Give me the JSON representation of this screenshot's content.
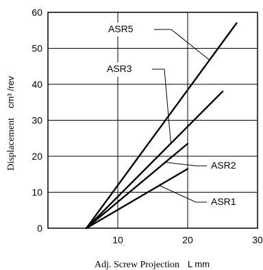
{
  "chart_data": {
    "type": "line",
    "title": "",
    "xlabel": "Adj. Screw Projection",
    "xlabel_unit": "L mm",
    "ylabel": "Displacement",
    "ylabel_unit": "cm³ /rev",
    "xlim": [
      0,
      30
    ],
    "ylim": [
      0,
      60
    ],
    "x_ticks": [
      10,
      20,
      30
    ],
    "y_ticks": [
      0,
      10,
      20,
      30,
      40,
      50,
      60
    ],
    "grid": true,
    "series": [
      {
        "name": "ASR1",
        "x": [
          5.5,
          20
        ],
        "y": [
          0,
          16.5
        ]
      },
      {
        "name": "ASR2",
        "x": [
          5.5,
          20
        ],
        "y": [
          0,
          23.5
        ]
      },
      {
        "name": "ASR3",
        "x": [
          5.5,
          25
        ],
        "y": [
          0,
          38
        ]
      },
      {
        "name": "ASR5",
        "x": [
          5.5,
          27
        ],
        "y": [
          0,
          57
        ]
      }
    ]
  }
}
